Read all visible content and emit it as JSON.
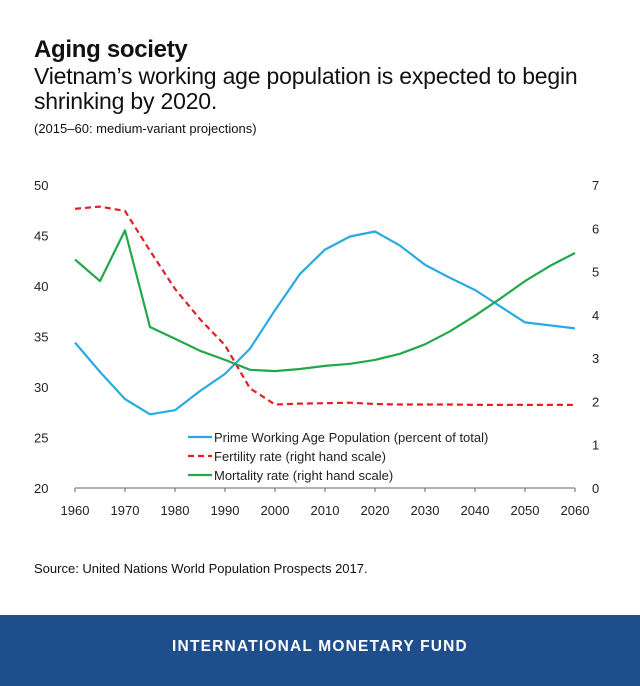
{
  "header": {
    "title": "Aging society",
    "subtitle": "Vietnam’s working age population is expected to begin shrinking by 2020.",
    "note": "(2015–60: medium-variant projections)"
  },
  "source": "Source: United Nations World Population Prospects 2017.",
  "footer": {
    "label": "INTERNATIONAL MONETARY FUND",
    "background": "#1f4e8c"
  },
  "chart_data": {
    "type": "line",
    "title": "Aging society",
    "x": [
      1960,
      1965,
      1970,
      1975,
      1980,
      1985,
      1990,
      1995,
      2000,
      2005,
      2010,
      2015,
      2020,
      2025,
      2030,
      2035,
      2040,
      2045,
      2050,
      2055,
      2060
    ],
    "xlim": [
      1960,
      2060
    ],
    "x_ticks": [
      "1960",
      "1970",
      "1980",
      "1990",
      "2000",
      "2010",
      "2020",
      "2030",
      "2040",
      "2050",
      "2060"
    ],
    "ylim_left": [
      20,
      50
    ],
    "y_ticks_left": [
      "20",
      "25",
      "30",
      "35",
      "40",
      "45",
      "50"
    ],
    "ylim_right": [
      0,
      7
    ],
    "y_ticks_right": [
      "0",
      "1",
      "2",
      "3",
      "4",
      "5",
      "6",
      "7"
    ],
    "grid": false,
    "legend_position": "lower-right",
    "series": [
      {
        "name": "Prime Working Age Population (percent of total)",
        "axis": "left",
        "color": "#29abe2",
        "style": "solid",
        "values": [
          34.4,
          31.5,
          28.8,
          27.3,
          27.7,
          29.6,
          31.3,
          33.8,
          37.6,
          41.2,
          43.6,
          44.9,
          45.4,
          44.0,
          42.1,
          40.8,
          39.6,
          38.0,
          36.4,
          36.1,
          35.8
        ]
      },
      {
        "name": "Fertility rate (right hand scale)",
        "axis": "right",
        "color": "#e41e26",
        "style": "dashed",
        "values": [
          6.45,
          6.5,
          6.4,
          5.48,
          4.6,
          3.9,
          3.3,
          2.3,
          1.93,
          1.95,
          1.96,
          1.97,
          1.94,
          1.93,
          1.93,
          1.93,
          1.92,
          1.92,
          1.92,
          1.92,
          1.92
        ]
      },
      {
        "name": "Mortality rate (right hand scale)",
        "axis": "right",
        "color": "#22a84a",
        "style": "solid",
        "values": [
          5.28,
          4.78,
          5.95,
          3.72,
          3.45,
          3.17,
          2.96,
          2.73,
          2.7,
          2.75,
          2.82,
          2.87,
          2.96,
          3.1,
          3.32,
          3.62,
          3.98,
          4.37,
          4.78,
          5.13,
          5.43
        ]
      }
    ]
  }
}
